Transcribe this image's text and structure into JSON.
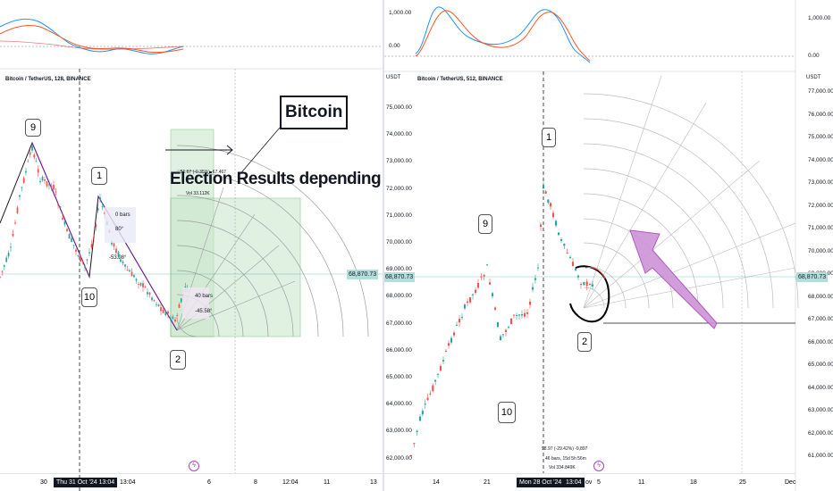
{
  "left_chart": {
    "symbol_label": "Bitcoin / TetherUS, 128, BINANCE",
    "indicator_zero": "0.00",
    "current_price": "68,870.73",
    "annotations": {
      "title_text": "Election Results depending",
      "bitcoin_box": "Bitcoin",
      "wave_9": "9",
      "wave_10": "10",
      "wave_1": "1",
      "wave_2": "2",
      "bars_0": "0 bars",
      "angle_80": "80°",
      "angle_5398": "-53.98°",
      "bars_40": "40 bars",
      "angle_4558": "-45.58°",
      "stats_line1": "-51.67 (-0.35%) -67.467",
      "stats_line2": "Vol 33.112K"
    },
    "time_ticks": [
      "30",
      "13:04",
      "6",
      "8",
      "12:04",
      "11",
      "13"
    ],
    "time_highlight": "Thu 31 Oct '24  13:04"
  },
  "right_chart": {
    "symbol_label": "Bitcoin / TetherUS, 512, BINANCE",
    "currency": "USDT",
    "indicator_top": "1,000.00",
    "indicator_zero": "0.00",
    "price_ticks": [
      "77,000.00",
      "76,000.00",
      "75,000.00",
      "74,000.00",
      "73,000.00",
      "72,000.00",
      "71,000.00",
      "70,000.00",
      "69,000.00",
      "68,000.00",
      "67,000.00",
      "66,000.00",
      "65,000.00",
      "64,000.00",
      "63,000.00",
      "62,000.00",
      "61,000.00"
    ],
    "inner_price_ticks": [
      "75,000.00",
      "74,000.00",
      "73,000.00",
      "72,000.00",
      "71,000.00",
      "70,000.00",
      "69,000.00",
      "68,000.00",
      "67,000.00",
      "66,000.00",
      "65,000.00",
      "64,000.00",
      "63,000.00",
      "62,000.00"
    ],
    "current_price": "68,870.73",
    "annotations": {
      "wave_1": "1",
      "wave_9": "9",
      "wave_10": "10",
      "wave_2": "2",
      "stats_line1": "98.97 (-29.42%) -9,897",
      "stats_line2": "46 bars, 15d 5h 56m",
      "stats_line3": "Vol 334.849K"
    },
    "time_ticks": [
      "14",
      "21",
      "5",
      "11",
      "18",
      "25",
      "Dec"
    ],
    "time_highlight": "Mon 28 Oct '24",
    "time_highlight2": "13:04",
    "time_partial": "ov"
  },
  "left_indicator_top": "1,000.00",
  "colors": {
    "up": "#26a69a",
    "down": "#ef5350",
    "accent_purple": "#ab47bc",
    "green_box": "#4caf50",
    "macd_blue": "#2196f3",
    "signal_red": "#ff5722"
  }
}
